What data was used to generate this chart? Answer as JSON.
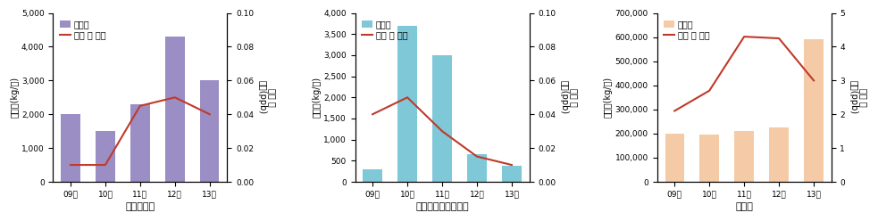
{
  "years": [
    "09년",
    "10년",
    "11년",
    "12년",
    "13년"
  ],
  "chart1": {
    "title": "클로로포름",
    "bar_values": [
      2000,
      1500,
      2300,
      4300,
      3000
    ],
    "bar_color": "#9B8EC4",
    "line_values": [
      0.01,
      0.01,
      0.045,
      0.05,
      0.04
    ],
    "line_color": "#C0392B",
    "yleft_label": "배출량(kg/년)",
    "yright_label": "대기 중\n농도(ppb)",
    "yleft_max": 5000,
    "yright_max": 0.1,
    "yleft_ticks": [
      0,
      1000,
      2000,
      3000,
      4000,
      5000
    ],
    "yright_ticks": [
      0,
      0.02,
      0.04,
      0.06,
      0.08,
      0.1
    ]
  },
  "chart2": {
    "title": "테드라클로로에틸렌",
    "bar_values": [
      300,
      3700,
      3000,
      650,
      380
    ],
    "bar_color": "#7EC8D8",
    "line_values": [
      0.04,
      0.05,
      0.03,
      0.015,
      0.01
    ],
    "line_color": "#C0392B",
    "yleft_label": "배출량(kg/년)",
    "yright_label": "대기 중\n농도(ppb)",
    "yleft_max": 4000,
    "yright_max": 0.1,
    "yleft_ticks": [
      0,
      500,
      1000,
      1500,
      2000,
      2500,
      3000,
      3500,
      4000
    ],
    "yright_ticks": [
      0,
      0.02,
      0.04,
      0.06,
      0.08,
      0.1
    ]
  },
  "chart3": {
    "title": "돌루엔",
    "bar_values": [
      200000,
      195000,
      210000,
      225000,
      590000
    ],
    "bar_color": "#F5CBA7",
    "line_values": [
      2.1,
      2.7,
      4.3,
      4.25,
      3.0
    ],
    "line_color": "#C0392B",
    "yleft_label": "배출량(kg/년)",
    "yright_label": "대기 중\n농도(ppb)",
    "yleft_max": 700000,
    "yright_max": 5,
    "yleft_ticks": [
      0,
      100000,
      200000,
      300000,
      400000,
      500000,
      600000,
      700000
    ],
    "yright_ticks": [
      0,
      1,
      2,
      3,
      4,
      5
    ]
  },
  "legend_bar": "배출량",
  "legend_line": "대기 중 농도",
  "fig_bg": "#FFFFFF",
  "xlabel_fontsize": 8,
  "tick_fontsize": 6.5,
  "legend_fontsize": 7,
  "ylabel_fontsize": 7
}
